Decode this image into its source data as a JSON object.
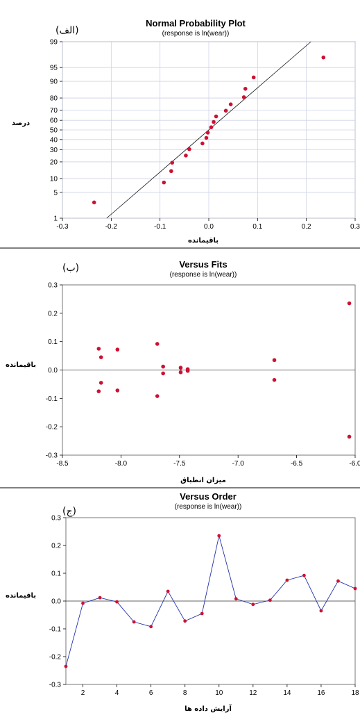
{
  "chart_data": [
    {
      "type": "scatter",
      "panel_label": "(الف)",
      "title": "Normal Probability Plot",
      "subtitle": "(response is ln(wear))",
      "xlabel": "باقیمانده",
      "ylabel": "درصد",
      "xlim": [
        -0.3,
        0.3
      ],
      "xticks": [
        -0.3,
        -0.2,
        -0.1,
        0.0,
        0.1,
        0.2,
        0.3
      ],
      "xtick_labels": [
        "-0.3",
        "-0.2",
        "-0.1",
        "0.0",
        "0.1",
        "0.2",
        "0.3"
      ],
      "y_scale": "normal-probability",
      "ylim": [
        1,
        99
      ],
      "yticks": [
        1,
        5,
        10,
        20,
        30,
        40,
        50,
        60,
        70,
        80,
        90,
        95,
        99
      ],
      "ytick_labels": [
        "1",
        "5",
        "10",
        "20",
        "30",
        "40",
        "50",
        "60",
        "70",
        "80",
        "90",
        "95",
        "99"
      ],
      "grid": true,
      "fit_line": {
        "mean": 0.0,
        "sd": 0.09
      },
      "points": [
        {
          "x": -0.235,
          "y": 2.8
        },
        {
          "x": -0.092,
          "y": 8.3
        },
        {
          "x": -0.077,
          "y": 13.9
        },
        {
          "x": -0.075,
          "y": 19.4
        },
        {
          "x": -0.047,
          "y": 25.0
        },
        {
          "x": -0.04,
          "y": 30.6
        },
        {
          "x": -0.013,
          "y": 36.1
        },
        {
          "x": -0.005,
          "y": 41.7
        },
        {
          "x": -0.002,
          "y": 47.2
        },
        {
          "x": 0.005,
          "y": 52.8
        },
        {
          "x": 0.01,
          "y": 58.3
        },
        {
          "x": 0.015,
          "y": 63.9
        },
        {
          "x": 0.035,
          "y": 69.4
        },
        {
          "x": 0.045,
          "y": 75.0
        },
        {
          "x": 0.072,
          "y": 80.6
        },
        {
          "x": 0.075,
          "y": 86.1
        },
        {
          "x": 0.092,
          "y": 91.7
        },
        {
          "x": 0.235,
          "y": 97.2
        }
      ]
    },
    {
      "type": "scatter",
      "panel_label": "(ب)",
      "title": "Versus Fits",
      "subtitle": "(response is ln(wear))",
      "xlabel": "میزان انطباق",
      "ylabel": "باقیمانده",
      "xlim": [
        -8.5,
        -6.0
      ],
      "xticks": [
        -8.5,
        -8.0,
        -7.5,
        -7.0,
        -6.5,
        -6.0
      ],
      "xtick_labels": [
        "-8.5",
        "-8.0",
        "-7.5",
        "-7.0",
        "-6.5",
        "-6.0"
      ],
      "ylim": [
        -0.3,
        0.3
      ],
      "yticks": [
        -0.3,
        -0.2,
        -0.1,
        0.0,
        0.1,
        0.2,
        0.3
      ],
      "ytick_labels": [
        "-0.3",
        "-0.2",
        "-0.1",
        "0.0",
        "0.1",
        "0.2",
        "0.3"
      ],
      "zero_line": true,
      "points": [
        {
          "x": -8.19,
          "y": 0.075
        },
        {
          "x": -8.17,
          "y": 0.045
        },
        {
          "x": -8.17,
          "y": -0.045
        },
        {
          "x": -8.19,
          "y": -0.075
        },
        {
          "x": -8.03,
          "y": 0.072
        },
        {
          "x": -8.03,
          "y": -0.072
        },
        {
          "x": -7.69,
          "y": 0.092
        },
        {
          "x": -7.69,
          "y": -0.092
        },
        {
          "x": -7.64,
          "y": 0.012
        },
        {
          "x": -7.64,
          "y": -0.012
        },
        {
          "x": -7.49,
          "y": 0.008
        },
        {
          "x": -7.49,
          "y": -0.008
        },
        {
          "x": -7.43,
          "y": 0.003
        },
        {
          "x": -7.43,
          "y": -0.003
        },
        {
          "x": -6.69,
          "y": 0.035
        },
        {
          "x": -6.69,
          "y": -0.035
        },
        {
          "x": -6.05,
          "y": 0.235
        },
        {
          "x": -6.05,
          "y": -0.235
        }
      ]
    },
    {
      "type": "line",
      "panel_label": "(ج)",
      "title": "Versus Order",
      "subtitle": "(response is ln(wear))",
      "xlabel": "آرایش داده ها",
      "ylabel": "باقیمانده",
      "xlim": [
        1,
        18
      ],
      "xticks": [
        2,
        4,
        6,
        8,
        10,
        12,
        14,
        16,
        18
      ],
      "xtick_labels": [
        "2",
        "4",
        "6",
        "8",
        "10",
        "12",
        "14",
        "16",
        "18"
      ],
      "ylim": [
        -0.3,
        0.3
      ],
      "yticks": [
        -0.3,
        -0.2,
        -0.1,
        0.0,
        0.1,
        0.2,
        0.3
      ],
      "ytick_labels": [
        "-0.3",
        "-0.2",
        "-0.1",
        "0.0",
        "0.1",
        "0.2",
        "0.3"
      ],
      "zero_line": true,
      "x": [
        1,
        2,
        3,
        4,
        5,
        6,
        7,
        8,
        9,
        10,
        11,
        12,
        13,
        14,
        15,
        16,
        17,
        18
      ],
      "values": [
        -0.235,
        -0.008,
        0.012,
        -0.003,
        -0.075,
        -0.092,
        0.035,
        -0.072,
        -0.045,
        0.235,
        0.008,
        -0.012,
        0.003,
        0.075,
        0.092,
        -0.035,
        0.072,
        0.045
      ]
    }
  ]
}
